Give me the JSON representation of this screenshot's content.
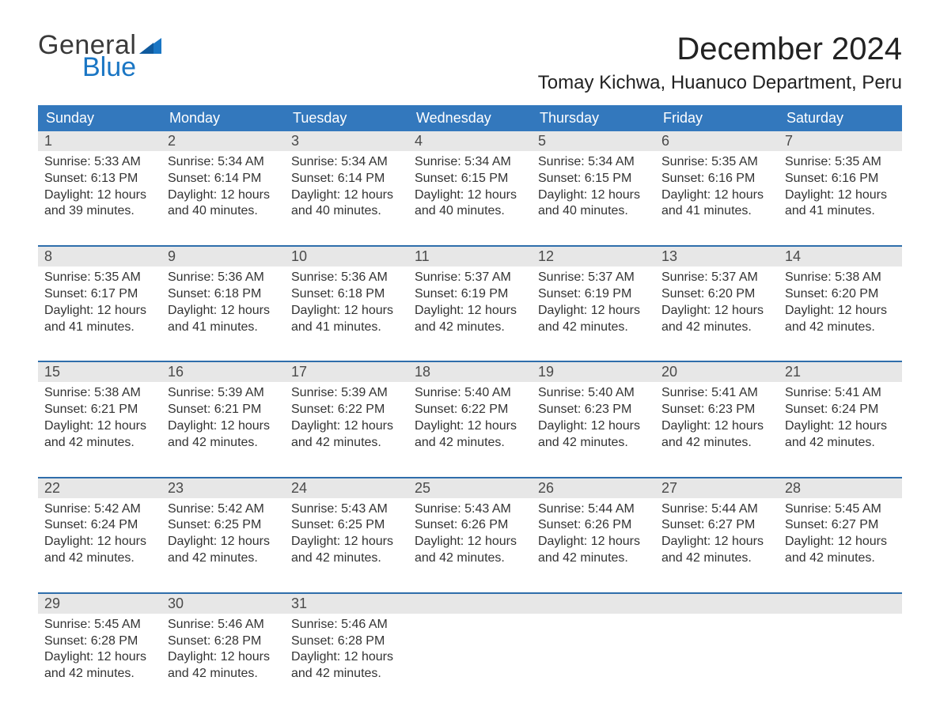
{
  "logo": {
    "line1": "General",
    "line2": "Blue"
  },
  "title": "December 2024",
  "location": "Tomay Kichwa, Huanuco Department, Peru",
  "colors": {
    "header_blue": "#3378bd",
    "logo_blue": "#1a76c4",
    "daynum_band": "#e7e7e7",
    "row_rule": "#2f6eab",
    "background": "#ffffff",
    "text": "#333333"
  },
  "days_of_week": [
    "Sunday",
    "Monday",
    "Tuesday",
    "Wednesday",
    "Thursday",
    "Friday",
    "Saturday"
  ],
  "labels": {
    "sunrise": "Sunrise:",
    "sunset": "Sunset:",
    "daylight": "Daylight:"
  },
  "weeks": [
    [
      {
        "n": "1",
        "sr": "5:33 AM",
        "ss": "6:13 PM",
        "dl": "12 hours and 39 minutes."
      },
      {
        "n": "2",
        "sr": "5:34 AM",
        "ss": "6:14 PM",
        "dl": "12 hours and 40 minutes."
      },
      {
        "n": "3",
        "sr": "5:34 AM",
        "ss": "6:14 PM",
        "dl": "12 hours and 40 minutes."
      },
      {
        "n": "4",
        "sr": "5:34 AM",
        "ss": "6:15 PM",
        "dl": "12 hours and 40 minutes."
      },
      {
        "n": "5",
        "sr": "5:34 AM",
        "ss": "6:15 PM",
        "dl": "12 hours and 40 minutes."
      },
      {
        "n": "6",
        "sr": "5:35 AM",
        "ss": "6:16 PM",
        "dl": "12 hours and 41 minutes."
      },
      {
        "n": "7",
        "sr": "5:35 AM",
        "ss": "6:16 PM",
        "dl": "12 hours and 41 minutes."
      }
    ],
    [
      {
        "n": "8",
        "sr": "5:35 AM",
        "ss": "6:17 PM",
        "dl": "12 hours and 41 minutes."
      },
      {
        "n": "9",
        "sr": "5:36 AM",
        "ss": "6:18 PM",
        "dl": "12 hours and 41 minutes."
      },
      {
        "n": "10",
        "sr": "5:36 AM",
        "ss": "6:18 PM",
        "dl": "12 hours and 41 minutes."
      },
      {
        "n": "11",
        "sr": "5:37 AM",
        "ss": "6:19 PM",
        "dl": "12 hours and 42 minutes."
      },
      {
        "n": "12",
        "sr": "5:37 AM",
        "ss": "6:19 PM",
        "dl": "12 hours and 42 minutes."
      },
      {
        "n": "13",
        "sr": "5:37 AM",
        "ss": "6:20 PM",
        "dl": "12 hours and 42 minutes."
      },
      {
        "n": "14",
        "sr": "5:38 AM",
        "ss": "6:20 PM",
        "dl": "12 hours and 42 minutes."
      }
    ],
    [
      {
        "n": "15",
        "sr": "5:38 AM",
        "ss": "6:21 PM",
        "dl": "12 hours and 42 minutes."
      },
      {
        "n": "16",
        "sr": "5:39 AM",
        "ss": "6:21 PM",
        "dl": "12 hours and 42 minutes."
      },
      {
        "n": "17",
        "sr": "5:39 AM",
        "ss": "6:22 PM",
        "dl": "12 hours and 42 minutes."
      },
      {
        "n": "18",
        "sr": "5:40 AM",
        "ss": "6:22 PM",
        "dl": "12 hours and 42 minutes."
      },
      {
        "n": "19",
        "sr": "5:40 AM",
        "ss": "6:23 PM",
        "dl": "12 hours and 42 minutes."
      },
      {
        "n": "20",
        "sr": "5:41 AM",
        "ss": "6:23 PM",
        "dl": "12 hours and 42 minutes."
      },
      {
        "n": "21",
        "sr": "5:41 AM",
        "ss": "6:24 PM",
        "dl": "12 hours and 42 minutes."
      }
    ],
    [
      {
        "n": "22",
        "sr": "5:42 AM",
        "ss": "6:24 PM",
        "dl": "12 hours and 42 minutes."
      },
      {
        "n": "23",
        "sr": "5:42 AM",
        "ss": "6:25 PM",
        "dl": "12 hours and 42 minutes."
      },
      {
        "n": "24",
        "sr": "5:43 AM",
        "ss": "6:25 PM",
        "dl": "12 hours and 42 minutes."
      },
      {
        "n": "25",
        "sr": "5:43 AM",
        "ss": "6:26 PM",
        "dl": "12 hours and 42 minutes."
      },
      {
        "n": "26",
        "sr": "5:44 AM",
        "ss": "6:26 PM",
        "dl": "12 hours and 42 minutes."
      },
      {
        "n": "27",
        "sr": "5:44 AM",
        "ss": "6:27 PM",
        "dl": "12 hours and 42 minutes."
      },
      {
        "n": "28",
        "sr": "5:45 AM",
        "ss": "6:27 PM",
        "dl": "12 hours and 42 minutes."
      }
    ],
    [
      {
        "n": "29",
        "sr": "5:45 AM",
        "ss": "6:28 PM",
        "dl": "12 hours and 42 minutes."
      },
      {
        "n": "30",
        "sr": "5:46 AM",
        "ss": "6:28 PM",
        "dl": "12 hours and 42 minutes."
      },
      {
        "n": "31",
        "sr": "5:46 AM",
        "ss": "6:28 PM",
        "dl": "12 hours and 42 minutes."
      },
      null,
      null,
      null,
      null
    ]
  ]
}
